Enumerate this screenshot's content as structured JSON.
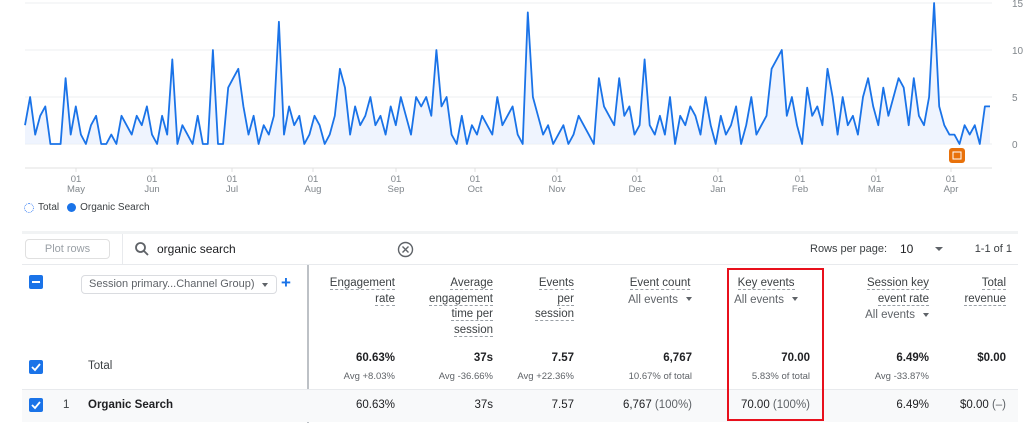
{
  "chart_data": {
    "type": "area",
    "ylim": [
      0,
      15
    ],
    "y_ticks": [
      "0",
      "5",
      "10",
      "15"
    ],
    "x_ticks": [
      {
        "day": "01",
        "month": "May"
      },
      {
        "day": "01",
        "month": "Jun"
      },
      {
        "day": "01",
        "month": "Jul"
      },
      {
        "day": "01",
        "month": "Aug"
      },
      {
        "day": "01",
        "month": "Sep"
      },
      {
        "day": "01",
        "month": "Oct"
      },
      {
        "day": "01",
        "month": "Nov"
      },
      {
        "day": "01",
        "month": "Dec"
      },
      {
        "day": "01",
        "month": "Jan"
      },
      {
        "day": "01",
        "month": "Feb"
      },
      {
        "day": "01",
        "month": "Mar"
      },
      {
        "day": "01",
        "month": "Apr"
      }
    ],
    "grid": true,
    "legend_position": "bottom-left",
    "series": [
      {
        "name": "Organic Search",
        "color": "#1a73e8",
        "values": [
          2,
          5,
          1,
          3,
          4,
          0,
          0,
          0,
          7,
          1,
          4,
          1,
          0,
          2,
          3,
          0,
          0,
          1,
          0,
          3,
          2,
          1,
          3,
          2,
          4,
          1,
          0,
          3,
          1,
          9,
          0,
          2,
          1,
          0,
          3,
          0,
          0,
          10,
          0,
          0,
          6,
          7,
          8,
          4,
          1,
          3,
          0,
          2,
          1,
          3,
          13,
          1,
          4,
          2,
          3,
          0,
          1,
          3,
          2,
          0,
          1,
          3,
          8,
          6,
          1,
          4,
          2,
          3,
          5,
          2,
          3,
          1,
          4,
          2,
          5,
          3,
          1,
          5,
          4,
          5,
          3,
          10,
          4,
          5,
          1,
          0,
          3,
          0,
          2,
          1,
          3,
          2,
          1,
          5,
          2,
          3,
          4,
          1,
          0,
          14,
          5,
          3,
          1,
          2,
          0,
          1,
          2,
          0,
          1,
          3,
          2,
          1,
          0,
          7,
          4,
          3,
          2,
          7,
          3,
          4,
          1,
          2,
          9,
          2,
          1,
          3,
          1,
          5,
          0,
          3,
          2,
          4,
          3,
          1,
          5,
          2,
          0,
          3,
          1,
          2,
          4,
          0,
          2,
          5,
          1,
          2,
          3,
          8,
          9,
          10,
          3,
          5,
          2,
          0,
          6,
          3,
          4,
          2,
          8,
          5,
          1,
          5,
          2,
          3,
          1,
          5,
          7,
          4,
          2,
          6,
          3,
          5,
          7,
          6,
          2,
          7,
          3,
          2,
          5,
          15,
          4,
          2,
          1,
          1,
          0,
          2,
          1,
          2,
          0,
          4,
          4
        ]
      }
    ],
    "legend": [
      "Total",
      "Organic Search"
    ],
    "annotation_icon": "annotation-icon"
  },
  "toolbar": {
    "plot_rows": "Plot rows",
    "search_value": "organic search",
    "rows_per_page_label": "Rows per page:",
    "rows_per_page": "10",
    "pagination": "1-1 of 1"
  },
  "table": {
    "dimension": "Session primary...Channel Group)",
    "columns": [
      {
        "label_lines": [
          "Engagement",
          "rate"
        ]
      },
      {
        "label_lines": [
          "Average",
          "engagement",
          "time per",
          "session"
        ]
      },
      {
        "label_lines": [
          "Events",
          "per",
          "session"
        ]
      },
      {
        "label_lines": [
          "Event count"
        ],
        "filter": "All events"
      },
      {
        "label_lines": [
          "Key events"
        ],
        "filter": "All events"
      },
      {
        "label_lines": [
          "Session key",
          "event rate"
        ],
        "filter": "All events"
      },
      {
        "label_lines": [
          "Total",
          "revenue"
        ]
      }
    ],
    "total": {
      "label": "Total",
      "values": [
        "60.63%",
        "37s",
        "7.57",
        "6,767",
        "70.00",
        "6.49%",
        "$0.00"
      ],
      "subs": [
        "Avg +8.03%",
        "Avg -36.66%",
        "Avg +22.36%",
        "10.67% of total",
        "5.83% of total",
        "Avg -33.87%",
        ""
      ]
    },
    "rows": [
      {
        "index": "1",
        "label": "Organic Search",
        "values": [
          "60.63%",
          "37s",
          "7.57",
          "6,767",
          "70.00",
          "6.49%",
          "$0.00"
        ],
        "shares": [
          "",
          "",
          "",
          "(100%)",
          "(100%)",
          "",
          "(–)"
        ]
      }
    ]
  },
  "colors": {
    "accent": "#1a73e8",
    "highlight_box": "#e8101c",
    "annotation": "#e8710a"
  }
}
